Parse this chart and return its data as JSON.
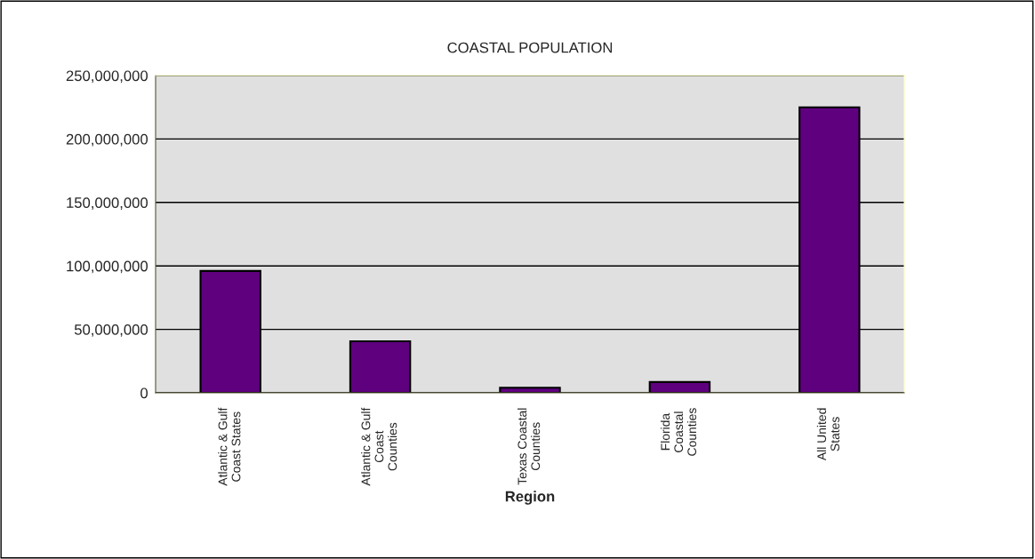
{
  "chart_data": {
    "type": "bar",
    "title": "COASTAL POPULATION",
    "xlabel": "Region",
    "categories": [
      "Atlantic & Gulf\nCoast States",
      "Atlantic & Gulf\nCoast\nCounties",
      "Texas Coastal\nCounties",
      "Florida\nCoastal\nCounties",
      "All United\nStates"
    ],
    "values": [
      96000000,
      40600000,
      4000000,
      8500000,
      225000000
    ],
    "color": "#5f007f",
    "ylim": [
      0,
      250000000
    ],
    "yticks": [
      {
        "value": 0,
        "label": "0"
      },
      {
        "value": 50000000,
        "label": "50,000,000"
      },
      {
        "value": 100000000,
        "label": "100,000,000"
      },
      {
        "value": 150000000,
        "label": "150,000,000"
      },
      {
        "value": 200000000,
        "label": "200,000,000"
      },
      {
        "value": 250000000,
        "label": "250,000,000"
      }
    ],
    "grid": "y",
    "legend": false
  }
}
